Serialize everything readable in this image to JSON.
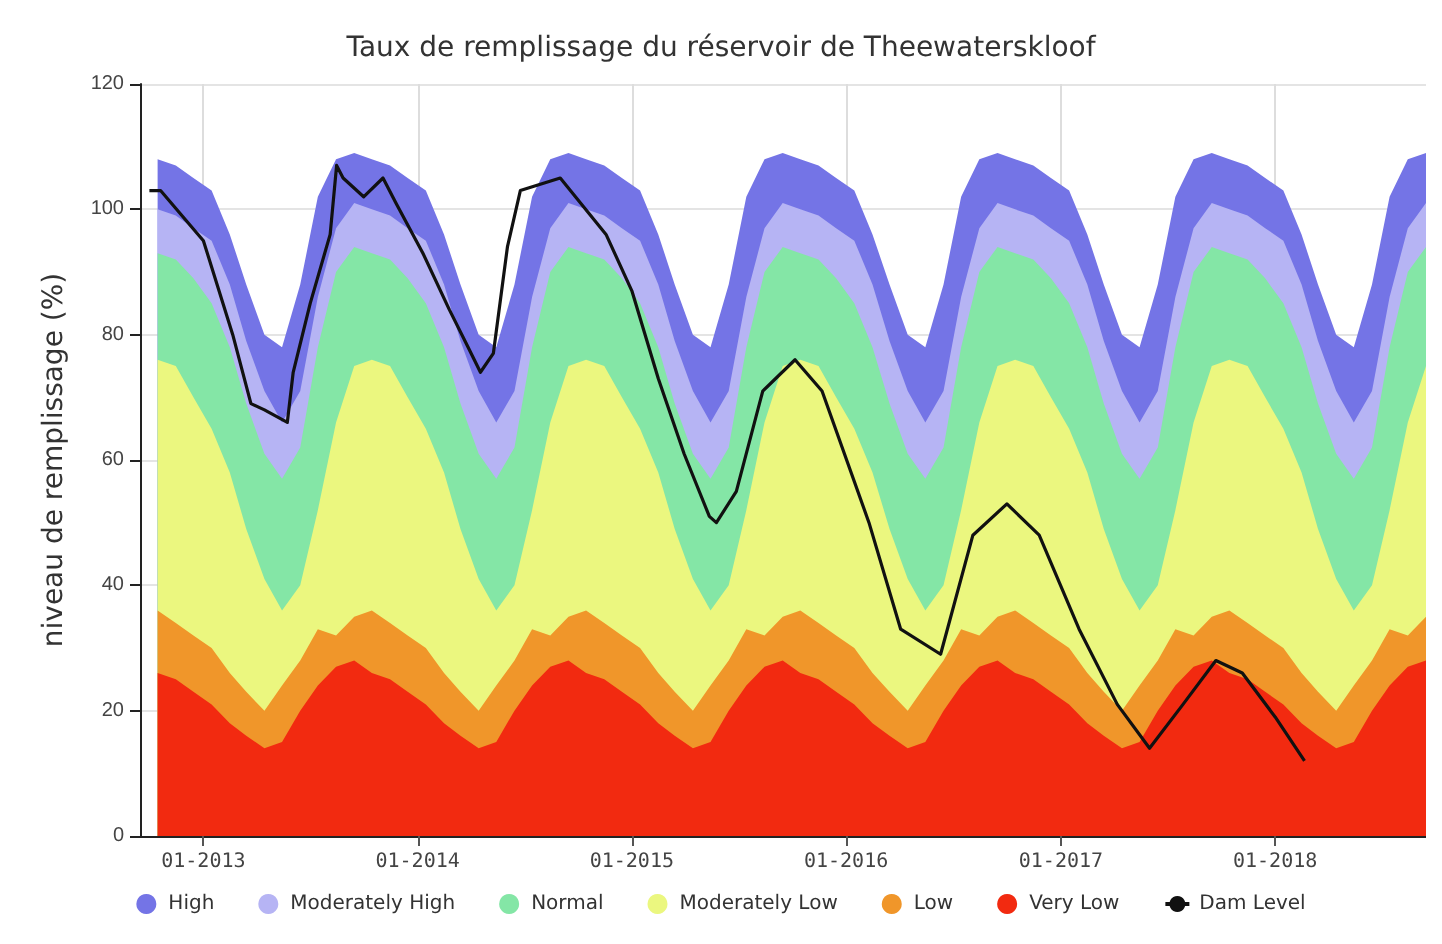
{
  "chart_data": {
    "type": "area",
    "stacked": true,
    "title": "Taux de remplissage du réservoir de Theewaterskloof",
    "ylabel": "niveau de remplissage (%)",
    "x": [
      "2012-10-15",
      "2012-11-15",
      "2012-12-15",
      "2013-01-15",
      "2013-02-15",
      "2013-03-15",
      "2013-04-15",
      "2013-05-15",
      "2013-06-15",
      "2013-07-15",
      "2013-08-15",
      "2013-09-15",
      "2013-10-15",
      "2013-11-15",
      "2013-12-15",
      "2014-01-15",
      "2014-02-15",
      "2014-03-15",
      "2014-04-15",
      "2014-05-15",
      "2014-06-15",
      "2014-07-15",
      "2014-08-15",
      "2014-09-15",
      "2014-10-15",
      "2014-11-15",
      "2014-12-15",
      "2015-01-15",
      "2015-02-15",
      "2015-03-15",
      "2015-04-15",
      "2015-05-15",
      "2015-06-15",
      "2015-07-15",
      "2015-08-15",
      "2015-09-15",
      "2015-10-15",
      "2015-11-15",
      "2015-12-15",
      "2016-01-15",
      "2016-02-15",
      "2016-03-15",
      "2016-04-15",
      "2016-05-15",
      "2016-06-15",
      "2016-07-15",
      "2016-08-15",
      "2016-09-15",
      "2016-10-15",
      "2016-11-15",
      "2016-12-15",
      "2017-01-15",
      "2017-02-15",
      "2017-03-15",
      "2017-04-15",
      "2017-05-15",
      "2017-06-15",
      "2017-07-15",
      "2017-08-15",
      "2017-09-15",
      "2017-10-15",
      "2017-11-15",
      "2017-12-15",
      "2018-01-15",
      "2018-02-15",
      "2018-03-15",
      "2018-04-15",
      "2018-05-15",
      "2018-06-15",
      "2018-07-15",
      "2018-08-15",
      "2018-09-15"
    ],
    "series": [
      {
        "name": "Very Low",
        "color": "#f22a10",
        "values": [
          26,
          25,
          23,
          21,
          18,
          16,
          14,
          15,
          20,
          24,
          27,
          28,
          26,
          25,
          23,
          21,
          18,
          16,
          14,
          15,
          20,
          24,
          27,
          28,
          26,
          25,
          23,
          21,
          18,
          16,
          14,
          15,
          20,
          24,
          27,
          28,
          26,
          25,
          23,
          21,
          18,
          16,
          14,
          15,
          20,
          24,
          27,
          28,
          26,
          25,
          23,
          21,
          18,
          16,
          14,
          15,
          20,
          24,
          27,
          28,
          26,
          25,
          23,
          21,
          18,
          16,
          14,
          15,
          20,
          24,
          27,
          28
        ]
      },
      {
        "name": "Low",
        "color": "#f0962a",
        "values": [
          10,
          9,
          9,
          9,
          8,
          7,
          6,
          9,
          8,
          9,
          5,
          7,
          10,
          9,
          9,
          9,
          8,
          7,
          6,
          9,
          8,
          9,
          5,
          7,
          10,
          9,
          9,
          9,
          8,
          7,
          6,
          9,
          8,
          9,
          5,
          7,
          10,
          9,
          9,
          9,
          8,
          7,
          6,
          9,
          8,
          9,
          5,
          7,
          10,
          9,
          9,
          9,
          8,
          7,
          6,
          9,
          8,
          9,
          5,
          7,
          10,
          9,
          9,
          9,
          8,
          7,
          6,
          9,
          8,
          9,
          5,
          7
        ]
      },
      {
        "name": "Moderately Low",
        "color": "#ebf77f",
        "values": [
          40,
          41,
          38,
          35,
          32,
          26,
          21,
          12,
          12,
          19,
          34,
          40,
          40,
          41,
          38,
          35,
          32,
          26,
          21,
          12,
          12,
          19,
          34,
          40,
          40,
          41,
          38,
          35,
          32,
          26,
          21,
          12,
          12,
          19,
          34,
          40,
          40,
          41,
          38,
          35,
          32,
          26,
          21,
          12,
          12,
          19,
          34,
          40,
          40,
          41,
          38,
          35,
          32,
          26,
          21,
          12,
          12,
          19,
          34,
          40,
          40,
          41,
          38,
          35,
          32,
          26,
          21,
          12,
          12,
          19,
          34,
          40
        ]
      },
      {
        "name": "Normal",
        "color": "#84e6a6",
        "values": [
          17,
          17,
          19,
          20,
          20,
          20,
          20,
          21,
          22,
          26,
          24,
          19,
          17,
          17,
          19,
          20,
          20,
          20,
          20,
          21,
          22,
          26,
          24,
          19,
          17,
          17,
          19,
          20,
          20,
          20,
          20,
          21,
          22,
          26,
          24,
          19,
          17,
          17,
          19,
          20,
          20,
          20,
          20,
          21,
          22,
          26,
          24,
          19,
          17,
          17,
          19,
          20,
          20,
          20,
          20,
          21,
          22,
          26,
          24,
          19,
          17,
          17,
          19,
          20,
          20,
          20,
          20,
          21,
          22,
          26,
          24,
          19
        ]
      },
      {
        "name": "Moderately High",
        "color": "#b6b4f4",
        "values": [
          7,
          7,
          8,
          10,
          10,
          10,
          10,
          9,
          9,
          8,
          7,
          7,
          7,
          7,
          8,
          10,
          10,
          10,
          10,
          9,
          9,
          8,
          7,
          7,
          7,
          7,
          8,
          10,
          10,
          10,
          10,
          9,
          9,
          8,
          7,
          7,
          7,
          7,
          8,
          10,
          10,
          10,
          10,
          9,
          9,
          8,
          7,
          7,
          7,
          7,
          8,
          10,
          10,
          10,
          10,
          9,
          9,
          8,
          7,
          7,
          7,
          7,
          8,
          10,
          10,
          10,
          10,
          9,
          9,
          8,
          7,
          7
        ]
      },
      {
        "name": "High",
        "color": "#7474e6",
        "values": [
          8,
          8,
          8,
          8,
          8,
          9,
          9,
          12,
          17,
          16,
          11,
          8,
          8,
          8,
          8,
          8,
          8,
          9,
          9,
          12,
          17,
          16,
          11,
          8,
          8,
          8,
          8,
          8,
          8,
          9,
          9,
          12,
          17,
          16,
          11,
          8,
          8,
          8,
          8,
          8,
          8,
          9,
          9,
          12,
          17,
          16,
          11,
          8,
          8,
          8,
          8,
          8,
          8,
          9,
          9,
          12,
          17,
          16,
          11,
          8,
          8,
          8,
          8,
          8,
          8,
          9,
          9,
          12,
          17,
          16,
          11,
          8
        ]
      },
      {
        "name": "Dam Level",
        "type": "line",
        "color": "#111111",
        "x": [
          "2012-10-01",
          "2012-10-20",
          "2013-01-01",
          "2013-02-20",
          "2013-03-23",
          "2013-04-15",
          "2013-05-24",
          "2013-06-03",
          "2013-07-02",
          "2013-08-05",
          "2013-08-16",
          "2013-08-27",
          "2013-10-01",
          "2013-11-03",
          "2013-11-25",
          "2014-01-10",
          "2014-02-24",
          "2014-03-28",
          "2014-04-18",
          "2014-05-10",
          "2014-06-03",
          "2014-06-25",
          "2014-09-01",
          "2014-11-18",
          "2015-01-01",
          "2015-02-15",
          "2015-03-31",
          "2015-05-13",
          "2015-05-25",
          "2015-06-28",
          "2015-08-12",
          "2015-10-06",
          "2015-11-21",
          "2016-02-09",
          "2016-04-03",
          "2016-06-10",
          "2016-08-04",
          "2016-10-01",
          "2016-11-25",
          "2017-02-01",
          "2017-04-07",
          "2017-06-01",
          "2017-07-28",
          "2017-09-22",
          "2017-11-06",
          "2018-01-01",
          "2018-02-20"
        ],
        "values": [
          103,
          103,
          95,
          80,
          69,
          68,
          66,
          74,
          85,
          96,
          107,
          105,
          102,
          105,
          101,
          93,
          84,
          78,
          74,
          77,
          94,
          103,
          105,
          96,
          87,
          73,
          61,
          51,
          50,
          55,
          71,
          76,
          71,
          50,
          33,
          29,
          48,
          53,
          48,
          33,
          21,
          14,
          21,
          28,
          26,
          19,
          12
        ]
      }
    ],
    "xlim": [
      "2012-09-15",
      "2018-09-15"
    ],
    "xticks": [
      {
        "value": "2013-01-01",
        "label": "01-2013"
      },
      {
        "value": "2014-01-01",
        "label": "01-2014"
      },
      {
        "value": "2015-01-01",
        "label": "01-2015"
      },
      {
        "value": "2016-01-01",
        "label": "01-2016"
      },
      {
        "value": "2017-01-01",
        "label": "01-2017"
      },
      {
        "value": "2018-01-01",
        "label": "01-2018"
      }
    ],
    "ylim": [
      0,
      120
    ],
    "yticks": [
      0,
      20,
      40,
      60,
      80,
      100,
      120
    ],
    "grid": true,
    "legend": "bottom",
    "marker": "none"
  }
}
